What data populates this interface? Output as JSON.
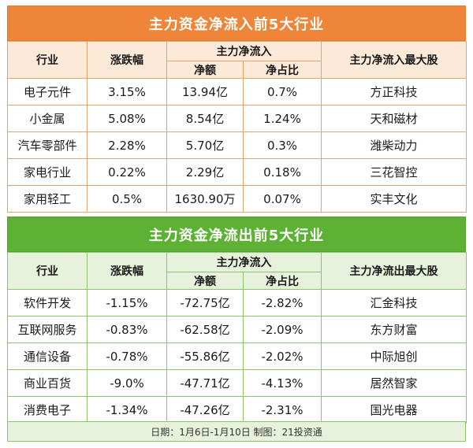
{
  "inflow": {
    "title": "主力资金净流入前5大行业",
    "headers": {
      "industry": "行业",
      "change": "涨跌幅",
      "main_net": "主力净流入",
      "amount": "净额",
      "ratio": "净占比",
      "top_stock": "主力净流入最大股"
    },
    "rows": [
      {
        "industry": "电子元件",
        "change": "3.15%",
        "amount": "13.94亿",
        "ratio": "0.7%",
        "top_stock": "方正科技"
      },
      {
        "industry": "小金属",
        "change": "5.08%",
        "amount": "8.54亿",
        "ratio": "1.24%",
        "top_stock": "天和磁材"
      },
      {
        "industry": "汽车零部件",
        "change": "2.28%",
        "amount": "5.70亿",
        "ratio": "0.3%",
        "top_stock": "潍柴动力"
      },
      {
        "industry": "家电行业",
        "change": "0.22%",
        "amount": "2.29亿",
        "ratio": "0.18%",
        "top_stock": "三花智控"
      },
      {
        "industry": "家用轻工",
        "change": "0.5%",
        "amount": "1630.90万",
        "ratio": "0.07%",
        "top_stock": "实丰文化"
      }
    ]
  },
  "outflow": {
    "title": "主力资金净流出前5大行业",
    "headers": {
      "industry": "行业",
      "change": "涨跌幅",
      "main_net": "主力净流入",
      "amount": "净额",
      "ratio": "净占比",
      "top_stock": "主力净流出最大股"
    },
    "rows": [
      {
        "industry": "软件开发",
        "change": "-1.15%",
        "amount": "-72.75亿",
        "ratio": "-2.82%",
        "top_stock": "汇金科技"
      },
      {
        "industry": "互联网服务",
        "change": "-0.83%",
        "amount": "-62.58亿",
        "ratio": "-2.09%",
        "top_stock": "东方财富"
      },
      {
        "industry": "通信设备",
        "change": "-0.78%",
        "amount": "-55.86亿",
        "ratio": "-2.02%",
        "top_stock": "中际旭创"
      },
      {
        "industry": "商业百货",
        "change": "-9.0%",
        "amount": "-47.71亿",
        "ratio": "-4.13%",
        "top_stock": "居然智家"
      },
      {
        "industry": "消费电子",
        "change": "-1.34%",
        "amount": "-47.26亿",
        "ratio": "-2.31%",
        "top_stock": "国光电器"
      }
    ]
  },
  "footer": {
    "text": "日期：1月6日-1月10日 制图：21投资通"
  }
}
